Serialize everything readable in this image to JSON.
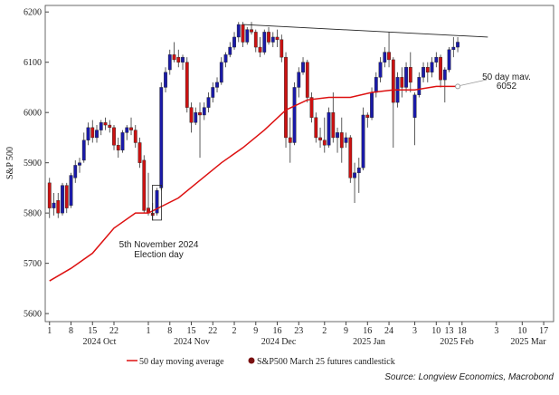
{
  "chart_data": {
    "type": "candlestick",
    "y_label": "S&P 500",
    "ylim": [
      5584,
      6213
    ],
    "yticks": [
      5600,
      5700,
      5800,
      5900,
      6000,
      6100,
      6200
    ],
    "xlim": [
      -1,
      117.3
    ],
    "xticks": [
      {
        "value": 0,
        "label": "1"
      },
      {
        "value": 5,
        "label": "8"
      },
      {
        "value": 10,
        "label": "15"
      },
      {
        "value": 15,
        "label": "22"
      },
      {
        "value": 23,
        "label": "1"
      },
      {
        "value": 28,
        "label": "8"
      },
      {
        "value": 33,
        "label": "15"
      },
      {
        "value": 38,
        "label": "22"
      },
      {
        "value": 43,
        "label": "2"
      },
      {
        "value": 48,
        "label": "9"
      },
      {
        "value": 53,
        "label": "16"
      },
      {
        "value": 58,
        "label": "23"
      },
      {
        "value": 64,
        "label": "2"
      },
      {
        "value": 69,
        "label": "9"
      },
      {
        "value": 74,
        "label": "16"
      },
      {
        "value": 79,
        "label": "24"
      },
      {
        "value": 85,
        "label": "3"
      },
      {
        "value": 90,
        "label": "10"
      },
      {
        "value": 93,
        "label": "13"
      },
      {
        "value": 96,
        "label": "18"
      },
      {
        "value": 104,
        "label": "3"
      },
      {
        "value": 110,
        "label": "10"
      },
      {
        "value": 115,
        "label": "17"
      }
    ],
    "months": [
      "2024 Oct",
      "2024 Nov",
      "2024 Dec",
      "2025 Jan",
      "2025 Feb",
      "2025 Mar"
    ],
    "candles": {
      "name": "S&P500 March 25 futures candlestick",
      "up_color": "#1a1aa8",
      "down_color": "#cc1111",
      "x": [
        0,
        1,
        2,
        3,
        4,
        5,
        6,
        7,
        8,
        9,
        10,
        11,
        12,
        13,
        14,
        15,
        16,
        17,
        18,
        19,
        20,
        21,
        22,
        23,
        24,
        25,
        26,
        27,
        28,
        29,
        30,
        31,
        32,
        33,
        34,
        35,
        36,
        37,
        38,
        39,
        40,
        41,
        42,
        43,
        44,
        45,
        46,
        47,
        48,
        49,
        50,
        51,
        52,
        53,
        54,
        55,
        56,
        57,
        58,
        59,
        60,
        61,
        62,
        63,
        64,
        65,
        66,
        67,
        68,
        69,
        70,
        71,
        72,
        73,
        74,
        75,
        76,
        77,
        78,
        79,
        80,
        81,
        82,
        83,
        84,
        85,
        86,
        87,
        88,
        89,
        90,
        91,
        92,
        93,
        94,
        95
      ],
      "open": [
        5860,
        5810,
        5825,
        5800,
        5855,
        5815,
        5870,
        5895,
        5905,
        5945,
        5970,
        5950,
        5965,
        5980,
        5975,
        5970,
        5935,
        5925,
        5960,
        5970,
        5965,
        5940,
        5905,
        5810,
        5800,
        5800,
        5850,
        6050,
        6085,
        6115,
        6110,
        6100,
        6100,
        6010,
        5980,
        6000,
        5995,
        6010,
        6030,
        6050,
        6060,
        6100,
        6115,
        6130,
        6150,
        6175,
        6140,
        6165,
        6160,
        6130,
        6120,
        6160,
        6140,
        6150,
        6145,
        6110,
        5950,
        5940,
        6050,
        6080,
        6100,
        6030,
        5990,
        5950,
        5945,
        5935,
        6000,
        5950,
        5960,
        5940,
        5950,
        5870,
        5880,
        5890,
        5995,
        5990,
        6040,
        6070,
        6100,
        6120,
        6105,
        6020,
        6070,
        6050,
        6090,
        5990,
        6035,
        6070,
        6090,
        6080,
        6100,
        6110,
        6065,
        6085,
        6125,
        6130
      ],
      "high": [
        5870,
        5840,
        5840,
        5860,
        5860,
        5880,
        5905,
        5910,
        5960,
        5980,
        5985,
        5975,
        5985,
        5990,
        5985,
        5975,
        5950,
        5965,
        5975,
        5990,
        5975,
        5950,
        5915,
        5880,
        5820,
        5850,
        6060,
        6090,
        6125,
        6140,
        6125,
        6115,
        6110,
        6020,
        6010,
        6020,
        6020,
        6040,
        6060,
        6070,
        6110,
        6120,
        6140,
        6160,
        6180,
        6180,
        6170,
        6180,
        6165,
        6150,
        6165,
        6170,
        6160,
        6165,
        6155,
        6120,
        5990,
        6060,
        6090,
        6110,
        6105,
        6040,
        6000,
        5970,
        5990,
        6010,
        6040,
        5970,
        5990,
        5960,
        5955,
        5900,
        5910,
        6010,
        6000,
        6050,
        6080,
        6110,
        6130,
        6160,
        6110,
        6080,
        6090,
        6100,
        6120,
        6040,
        6080,
        6100,
        6100,
        6110,
        6120,
        6115,
        6090,
        6130,
        6150,
        6150
      ],
      "low": [
        5790,
        5795,
        5790,
        5795,
        5800,
        5810,
        5860,
        5880,
        5900,
        5935,
        5940,
        5940,
        5955,
        5965,
        5960,
        5925,
        5910,
        5920,
        5945,
        5955,
        5930,
        5890,
        5800,
        5795,
        5785,
        5795,
        5845,
        6040,
        6075,
        6100,
        6090,
        6085,
        6000,
        5960,
        5975,
        5910,
        5985,
        6000,
        6020,
        6040,
        6055,
        6090,
        6110,
        6125,
        6140,
        6130,
        6135,
        6155,
        6120,
        6110,
        6115,
        6135,
        6130,
        6130,
        6100,
        5930,
        5900,
        5935,
        6030,
        6075,
        6020,
        5980,
        5940,
        5930,
        5920,
        5930,
        5940,
        5920,
        5900,
        5930,
        5860,
        5820,
        5840,
        5885,
        5970,
        5985,
        6030,
        6060,
        6090,
        6090,
        5930,
        6010,
        6030,
        6040,
        6040,
        5935,
        6030,
        6060,
        6060,
        6070,
        6090,
        6050,
        6020,
        6080,
        6110,
        6120
      ],
      "close": [
        5810,
        5820,
        5800,
        5855,
        5810,
        5875,
        5895,
        5900,
        5945,
        5970,
        5950,
        5965,
        5980,
        5975,
        5970,
        5935,
        5925,
        5960,
        5970,
        5965,
        5940,
        5900,
        5805,
        5800,
        5795,
        5845,
        6050,
        6080,
        6115,
        6105,
        6100,
        6110,
        6010,
        5980,
        6000,
        5995,
        6010,
        6030,
        6050,
        6060,
        6100,
        6115,
        6130,
        6150,
        6175,
        6140,
        6165,
        6160,
        6130,
        6120,
        6160,
        6140,
        6150,
        6145,
        6110,
        5950,
        5940,
        6050,
        6080,
        6100,
        6030,
        5990,
        5950,
        5945,
        5935,
        6000,
        5950,
        5960,
        5930,
        5950,
        5870,
        5880,
        5890,
        5995,
        5990,
        6040,
        6070,
        6100,
        6120,
        6105,
        6020,
        6070,
        6050,
        6090,
        6060,
        6035,
        6070,
        6090,
        6080,
        6100,
        6110,
        6065,
        6085,
        6125,
        6130,
        6140
      ]
    },
    "moving_average": {
      "name": "50 day moving average",
      "color": "#dd1111",
      "x": [
        0,
        5,
        10,
        15,
        20,
        23,
        30,
        35,
        40,
        45,
        50,
        55,
        60,
        65,
        70,
        75,
        80,
        85,
        90,
        95
      ],
      "values": [
        5665,
        5690,
        5720,
        5770,
        5800,
        5800,
        5830,
        5865,
        5900,
        5930,
        5965,
        6005,
        6025,
        6030,
        6030,
        6040,
        6045,
        6045,
        6052,
        6052
      ]
    },
    "trendline": {
      "x": [
        45,
        102
      ],
      "values": [
        6175,
        6150
      ]
    },
    "annotations": [
      {
        "lines": [
          "5th November 2024",
          "Election day"
        ],
        "x": 25
      },
      {
        "lines": [
          "50 day mav.",
          "6052"
        ],
        "x": 95
      }
    ],
    "source": "Source: Longview Economics, Macrobond"
  }
}
